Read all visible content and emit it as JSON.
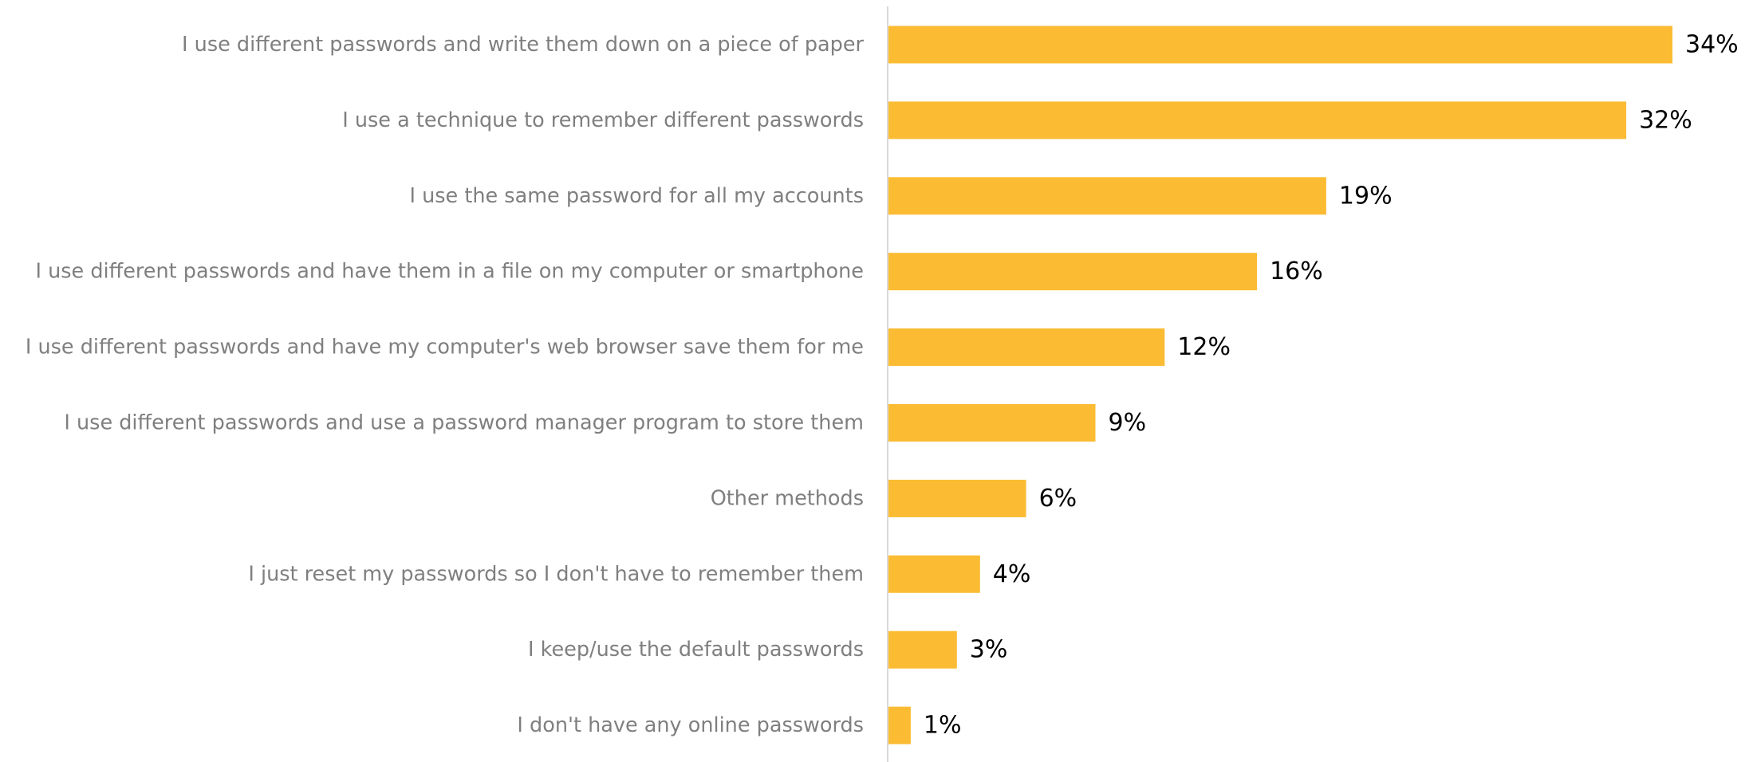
{
  "chart_data": {
    "type": "bar",
    "orientation": "horizontal",
    "title": "",
    "xlabel": "",
    "ylabel": "",
    "categories": [
      "I use different passwords and write them down on a piece of paper",
      "I use a technique to remember different passwords",
      "I use the same password for all my accounts",
      "I use different passwords and have them in a file on my computer or smartphone",
      "I use different passwords and have my computer's web browser save them for me",
      "I use different passwords and use a password manager program to store them",
      "Other methods",
      "I just reset my passwords so I don't have to remember them",
      "I keep/use the default passwords",
      "I don't have any online passwords"
    ],
    "values": [
      34,
      32,
      19,
      16,
      12,
      9,
      6,
      4,
      3,
      1
    ],
    "value_labels": [
      "34%",
      "32%",
      "19%",
      "16%",
      "12%",
      "9%",
      "6%",
      "4%",
      "3%",
      "1%"
    ],
    "unit": "%",
    "xlim": [
      0,
      34
    ],
    "grid": false,
    "legend": "none",
    "colors": {
      "bar": "#fbbc33",
      "axis": "#d9d9d9",
      "category_text": "#7f7f7f",
      "value_text": "#000000"
    }
  }
}
